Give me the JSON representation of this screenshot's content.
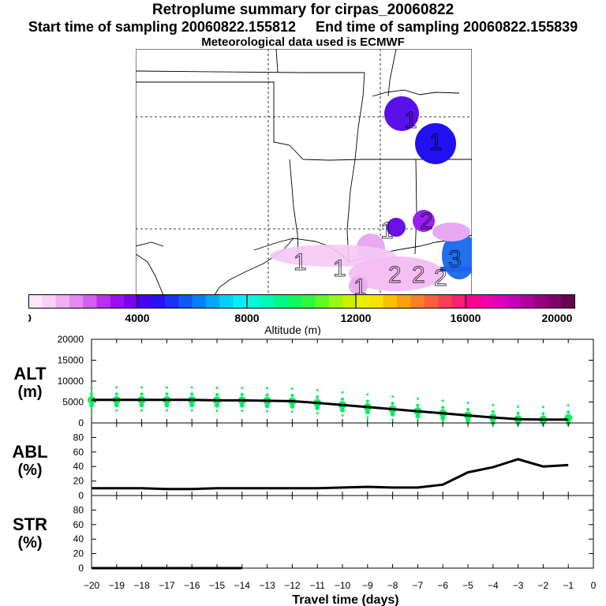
{
  "title": "Retroplume summary for cirpas_20060822",
  "sampling": {
    "start_label": "Start time of sampling 20060822.155812",
    "end_label": "End time of sampling 20060822.155839"
  },
  "met_label": "Meteorological data used is ECMWF",
  "map_plume_labels": [
    "1",
    "1",
    "1",
    "1",
    "1",
    "2",
    "2",
    "2",
    "3",
    "1",
    "2"
  ],
  "colorbar": {
    "label": "Altitude (m)",
    "ticks": [
      "0",
      "4000",
      "8000",
      "12000",
      "16000",
      "20000"
    ],
    "colors": [
      "#fde8fb",
      "#f9d0f6",
      "#f2b0f3",
      "#e58af0",
      "#d060f0",
      "#b830ef",
      "#9a10f0",
      "#7a00f0",
      "#4a00f0",
      "#2a10f5",
      "#1c30f7",
      "#1058f8",
      "#0080f8",
      "#00a8f8",
      "#00d0f8",
      "#00f0f8",
      "#00f8d8",
      "#00f8b0",
      "#00f888",
      "#10f860",
      "#30f838",
      "#60f820",
      "#98f810",
      "#c8f000",
      "#e8f000",
      "#f8e000",
      "#f8c000",
      "#f8a010",
      "#f88028",
      "#f86040",
      "#f84050",
      "#f82070",
      "#f80090",
      "#f000a8",
      "#e000b8",
      "#c800b8",
      "#b00098",
      "#980080",
      "#800068",
      "#680050"
    ]
  },
  "map_plume_colors": [
    "#5010e8",
    "#2010f0",
    "#2060f0",
    "#e0a0f0",
    "#c040e0"
  ],
  "chart_data": [
    {
      "type": "line",
      "panel": "ALT",
      "ylabel": "ALT\n(m)",
      "ylabel_lines": [
        "ALT",
        "(m)"
      ],
      "ylim": [
        0,
        20000
      ],
      "yticks": [
        0,
        5000,
        10000,
        15000,
        20000
      ],
      "x": [
        -20,
        -19,
        -18,
        -17,
        -16,
        -15,
        -14,
        -13,
        -12,
        -11,
        -10,
        -9,
        -8,
        -7,
        -6,
        -5,
        -4,
        -3,
        -2,
        -1
      ],
      "series": [
        {
          "name": "median altitude",
          "color": "#000000",
          "values": [
            5500,
            5500,
            5500,
            5500,
            5500,
            5400,
            5400,
            5300,
            5200,
            4800,
            4300,
            3800,
            3300,
            2800,
            2300,
            1800,
            1300,
            900,
            800,
            800
          ]
        },
        {
          "name": "altitude distribution",
          "color": "#00f060",
          "style": "dots",
          "values": [
            5500,
            5500,
            5500,
            5500,
            5500,
            5400,
            5400,
            5300,
            5200,
            4800,
            4300,
            3800,
            3300,
            2800,
            2300,
            1800,
            1300,
            900,
            800,
            1200
          ]
        }
      ]
    },
    {
      "type": "line",
      "panel": "ABL",
      "ylabel_lines": [
        "ABL",
        "(%)"
      ],
      "ylim": [
        0,
        100
      ],
      "yticks": [
        0,
        20,
        40,
        60,
        80
      ],
      "x": [
        -20,
        -19,
        -18,
        -17,
        -16,
        -15,
        -14,
        -13,
        -12,
        -11,
        -10,
        -9,
        -8,
        -7,
        -6,
        -5,
        -4,
        -3,
        -2,
        -1
      ],
      "series": [
        {
          "name": "ABL fraction",
          "values": [
            10,
            10,
            10,
            9,
            9,
            10,
            10,
            10,
            10,
            10,
            11,
            12,
            11,
            11,
            15,
            32,
            39,
            50,
            40,
            42
          ]
        }
      ]
    },
    {
      "type": "line",
      "panel": "STR",
      "ylabel_lines": [
        "STR",
        "(%)"
      ],
      "ylim": [
        0,
        100
      ],
      "yticks": [
        0,
        20,
        40,
        60,
        80
      ],
      "x": [
        -20,
        -19,
        -18,
        -17,
        -16,
        -15,
        -14,
        -13,
        -12,
        -11,
        -10,
        -9,
        -8,
        -7,
        -6,
        -5,
        -4,
        -3,
        -2,
        -1
      ],
      "series": [
        {
          "name": "stratospheric fraction",
          "values": [
            0,
            0,
            0,
            0,
            0,
            0,
            0,
            null,
            null,
            null,
            null,
            null,
            null,
            null,
            null,
            null,
            null,
            null,
            null,
            null
          ]
        }
      ]
    }
  ],
  "xaxis": {
    "label": "Travel time (days)",
    "ticks": [
      -20,
      -19,
      -18,
      -17,
      -16,
      -15,
      -14,
      -13,
      -12,
      -11,
      -10,
      -9,
      -8,
      -7,
      -6,
      -5,
      -4,
      -3,
      -2,
      -1,
      0
    ],
    "tick_labels": [
      "−20",
      "−19",
      "−18",
      "−17",
      "−16",
      "−15",
      "−14",
      "−13",
      "−12",
      "−11",
      "−10",
      "−9",
      "−8",
      "−7",
      "−6",
      "−5",
      "−4",
      "−3",
      "−2",
      "−1",
      "0"
    ]
  }
}
